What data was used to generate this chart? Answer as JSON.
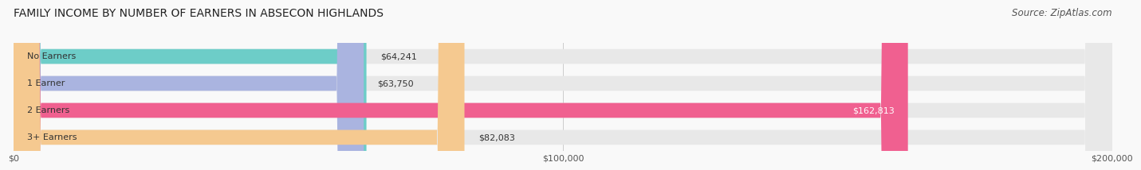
{
  "title": "FAMILY INCOME BY NUMBER OF EARNERS IN ABSECON HIGHLANDS",
  "source": "Source: ZipAtlas.com",
  "categories": [
    "No Earners",
    "1 Earner",
    "2 Earners",
    "3+ Earners"
  ],
  "values": [
    64241,
    63750,
    162813,
    82083
  ],
  "bar_colors": [
    "#6dcdc8",
    "#aab4e0",
    "#f06090",
    "#f5c990"
  ],
  "bar_bg_color": "#e8e8e8",
  "value_labels": [
    "$64,241",
    "$63,750",
    "$162,813",
    "$82,083"
  ],
  "label_colors": [
    "#333333",
    "#333333",
    "#ffffff",
    "#333333"
  ],
  "xmax": 200000,
  "xticks": [
    0,
    100000,
    200000
  ],
  "xticklabels": [
    "$0",
    "$100,000",
    "$200,000"
  ],
  "background_color": "#f9f9f9",
  "bar_height": 0.55,
  "title_fontsize": 10,
  "source_fontsize": 8.5,
  "label_fontsize": 8,
  "category_fontsize": 8
}
